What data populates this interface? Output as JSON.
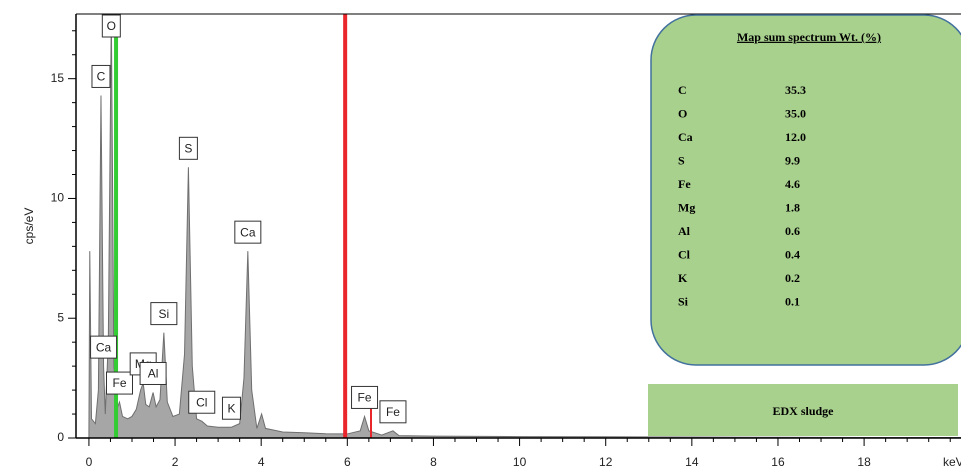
{
  "chart_data": {
    "type": "area",
    "xlabel": "keV",
    "ylabel": "cps/eV",
    "xlim": [
      -0.3,
      20.25
    ],
    "ylim": [
      0,
      17.7
    ],
    "xticks": [
      0,
      2,
      4,
      6,
      8,
      10,
      12,
      14,
      16,
      18
    ],
    "yticks": [
      0,
      5,
      10,
      15
    ],
    "xminorticks": [
      0.5,
      1,
      1.5,
      2.5,
      3,
      3.5,
      4.5,
      5,
      5.5,
      6.5,
      7,
      7.5,
      8.5,
      9,
      9.5,
      10.5,
      11,
      11.5,
      12.5,
      13,
      13.5,
      14.5,
      15,
      15.5,
      16.5,
      17,
      17.5,
      18.5,
      19,
      19.5,
      20
    ],
    "yminorticks": [
      1,
      2,
      3,
      4,
      6,
      7,
      8,
      9,
      11,
      12,
      13,
      14,
      16,
      17
    ],
    "color": "#a6a6a6",
    "x": [
      0,
      0.02,
      0.06,
      0.15,
      0.22,
      0.28,
      0.34,
      0.38,
      0.45,
      0.52,
      0.58,
      0.65,
      0.71,
      0.78,
      0.9,
      1.0,
      1.1,
      1.2,
      1.26,
      1.32,
      1.4,
      1.49,
      1.56,
      1.65,
      1.74,
      1.82,
      1.95,
      2.1,
      2.22,
      2.31,
      2.4,
      2.5,
      2.62,
      2.75,
      3.0,
      3.31,
      3.5,
      3.6,
      3.69,
      3.78,
      3.9,
      4.01,
      4.1,
      4.5,
      5.0,
      5.5,
      6.0,
      6.3,
      6.4,
      6.5,
      6.8,
      7.06,
      7.2,
      8,
      10,
      12,
      14,
      16,
      18,
      20.25
    ],
    "values": [
      0.3,
      7.8,
      0.8,
      0.6,
      2.0,
      14.3,
      3.0,
      1.0,
      4.0,
      17.7,
      3.0,
      1.2,
      1.5,
      0.9,
      0.8,
      0.9,
      1.2,
      2.0,
      2.3,
      1.4,
      1.3,
      1.9,
      1.3,
      1.6,
      4.4,
      1.5,
      0.9,
      1.0,
      3.5,
      11.3,
      3.0,
      0.8,
      0.7,
      0.5,
      0.45,
      0.45,
      0.6,
      2.5,
      7.8,
      2.0,
      0.4,
      1.0,
      0.4,
      0.25,
      0.22,
      0.18,
      0.17,
      0.3,
      0.9,
      0.3,
      0.12,
      0.3,
      0.1,
      0.08,
      0.06,
      0.05,
      0.04,
      0.03,
      0.02,
      0.02
    ],
    "annotations": [
      {
        "text": "O",
        "x": 0.52
      },
      {
        "text": "C",
        "x": 0.28
      },
      {
        "text": "Ca",
        "x": 0.34
      },
      {
        "text": "Fe",
        "x": 0.71
      },
      {
        "text": "Mg",
        "x": 1.26
      },
      {
        "text": "Al",
        "x": 1.49
      },
      {
        "text": "Si",
        "x": 1.74
      },
      {
        "text": "S",
        "x": 2.31
      },
      {
        "text": "Cl",
        "x": 2.62
      },
      {
        "text": "K",
        "x": 3.31
      },
      {
        "text": "Ca",
        "x": 3.69
      },
      {
        "text": "Fe",
        "x": 6.4
      },
      {
        "text": "Fe",
        "x": 7.06
      }
    ],
    "markers": [
      {
        "x": 0.63,
        "color": "#33cc33"
      },
      {
        "x": 5.95,
        "color": "#e8262b"
      },
      {
        "x": 6.55,
        "color": "#e8262b",
        "height": 2.1
      }
    ],
    "inset_table": {
      "title": "Map sum spectrum Wt. (%)",
      "rows": [
        [
          "C",
          "35.3"
        ],
        [
          "O",
          "35.0"
        ],
        [
          "Ca",
          "12.0"
        ],
        [
          "S",
          "9.9"
        ],
        [
          "Fe",
          "4.6"
        ],
        [
          "Mg",
          "1.8"
        ],
        [
          "Al",
          "0.6"
        ],
        [
          "Cl",
          "0.4"
        ],
        [
          "K",
          "0.2"
        ],
        [
          "Si",
          "0.1"
        ]
      ]
    },
    "label": "EDX sludge"
  }
}
